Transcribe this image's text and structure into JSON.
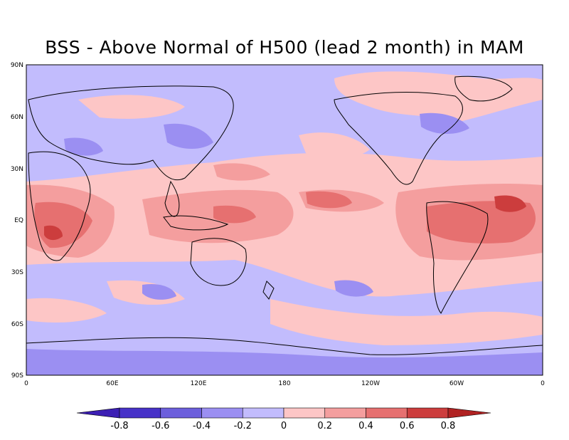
{
  "title": "BSS - Above Normal of H500 (lead 2 month) in MAM",
  "lat_ticks": [
    "90N",
    "60N",
    "30N",
    "EQ",
    "30S",
    "60S",
    "90S"
  ],
  "lon_ticks": [
    "0",
    "60E",
    "120E",
    "180",
    "120W",
    "60W",
    "0"
  ],
  "colorbar": {
    "labels": [
      "-0.8",
      "-0.6",
      "-0.4",
      "-0.2",
      "0",
      "0.2",
      "0.4",
      "0.6",
      "0.8"
    ],
    "colors": [
      "#3c1fb4",
      "#4732c8",
      "#6c5fdc",
      "#9b8ff2",
      "#c2bcfd",
      "#fdc6c6",
      "#f49e9e",
      "#e67070",
      "#cc3d3d",
      "#b02222"
    ]
  },
  "field_colors": {
    "neg_02": "#c2bcfd",
    "neg_04": "#9b8ff2",
    "pos_02": "#fdc6c6",
    "pos_04": "#f49e9e",
    "pos_06": "#e67070",
    "pos_08": "#cc3d3d"
  }
}
